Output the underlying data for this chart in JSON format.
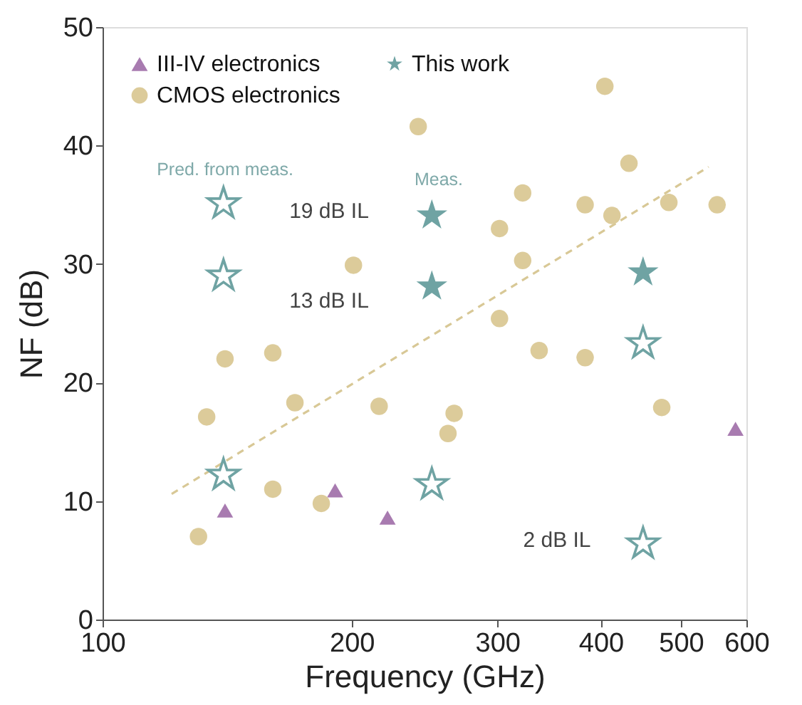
{
  "chart_data": {
    "type": "scatter",
    "xlabel": "Frequency (GHz)",
    "ylabel": "NF (dB)",
    "log": "x",
    "xlim": [
      100,
      600
    ],
    "xticks": [
      100,
      200,
      300,
      400,
      500,
      600
    ],
    "ylim": [
      0,
      50
    ],
    "yticks": [
      0,
      10,
      20,
      30,
      40,
      50
    ],
    "grid": false,
    "legend": "top left",
    "series": [
      {
        "name": "III-IV electronics",
        "color": "#a87bb0",
        "marker": "triangle",
        "x": [
          140.6,
          191,
          221,
          582
        ],
        "values": [
          9.2,
          10.9,
          8.6,
          16.1
        ]
      },
      {
        "name": "CMOS electronics",
        "color": "#dccb9a",
        "marker": "circle",
        "x": [
          130.6,
          133.6,
          140.6,
          160.6,
          170.8,
          160.6,
          183.8,
          215.9,
          261.5,
          266,
          201,
          240.7,
          404.6,
          432.7,
          321.9,
          383,
          412.7,
          483.5,
          553,
          301.8,
          321.9,
          301.8,
          337,
          383,
          474
        ],
        "values": [
          7.0,
          17.1,
          22.0,
          22.5,
          18.3,
          11.0,
          9.8,
          18.0,
          15.7,
          17.4,
          29.9,
          41.6,
          45.0,
          38.5,
          36.0,
          35.0,
          34.1,
          35.2,
          35.0,
          33.0,
          30.3,
          25.4,
          22.7,
          22.1,
          17.9
        ]
      },
      {
        "name": "This work",
        "color": "#6fa3a3",
        "marker": "star",
        "x": [
          250,
          250,
          450
        ],
        "values": [
          34.1,
          28.1,
          29.3
        ]
      },
      {
        "color": "#6fa3a3",
        "marker": "star",
        "x": [
          140,
          140,
          140,
          250,
          450,
          450
        ],
        "values": [
          35.1,
          29.0,
          12.2,
          11.4,
          23.3,
          6.4
        ]
      },
      {
        "type": "line",
        "line_style": "dashed",
        "color": "#d8c896",
        "x": [
          121.2,
          540
        ],
        "values": [
          10.6,
          38.2
        ]
      }
    ],
    "annotations": [
      "Pred. from meas.",
      "Meas.",
      "19 dB IL",
      "13 dB IL",
      "2 dB IL"
    ]
  }
}
